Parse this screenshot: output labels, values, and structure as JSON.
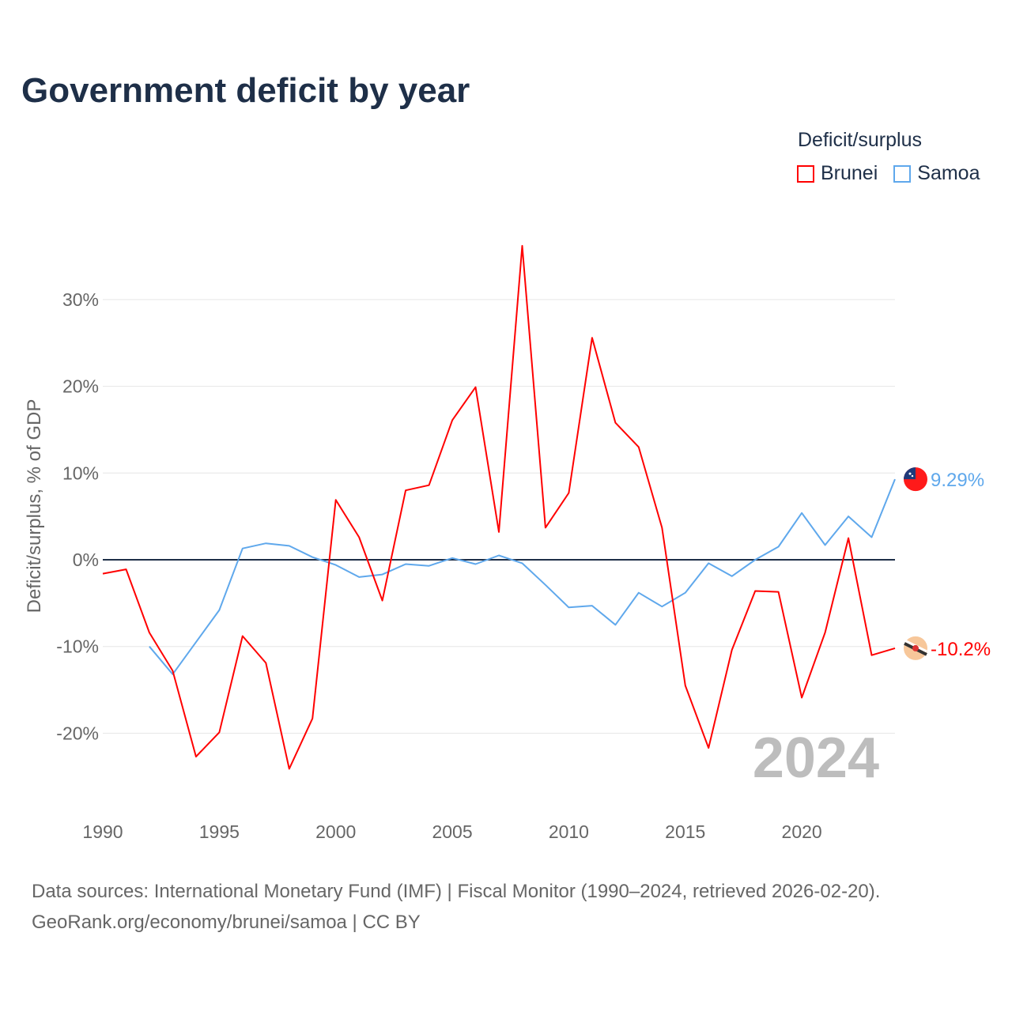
{
  "chart_data": {
    "type": "line",
    "title": "Government deficit by year",
    "xlabel": "",
    "ylabel": "Deficit/surplus, % of GDP",
    "xlim": [
      1990,
      2024
    ],
    "ylim": [
      -28,
      36
    ],
    "x_ticks": [
      1990,
      1995,
      2000,
      2005,
      2010,
      2015,
      2020
    ],
    "x_tick_labels": [
      "1990",
      "1995",
      "2000",
      "2005",
      "2010",
      "2015",
      "2020"
    ],
    "y_ticks": [
      30,
      20,
      10,
      0,
      -10,
      -20
    ],
    "y_tick_labels": [
      "30%",
      "20%",
      "10%",
      "0%",
      "-10%",
      "-20%"
    ],
    "grid": true,
    "legend_title": "Deficit/surplus",
    "legend_position": "top-right",
    "year_label": "2024",
    "series": [
      {
        "name": "Brunei",
        "color": "#ff0000",
        "end_label": "-10.2%",
        "start_year": 1990,
        "values": [
          -1.6,
          -1.1,
          -8.4,
          -12.8,
          -22.7,
          -19.9,
          -8.8,
          -11.9,
          -24.1,
          -18.3,
          6.9,
          2.6,
          -4.7,
          8.0,
          8.6,
          16.1,
          19.9,
          3.2,
          36.2,
          3.7,
          7.7,
          25.6,
          15.8,
          13.0,
          3.7,
          -14.5,
          -21.7,
          -10.4,
          -3.6,
          -3.7,
          -15.9,
          -8.4,
          2.5,
          -11.0,
          -10.2
        ]
      },
      {
        "name": "Samoa",
        "color": "#5fa8ec",
        "end_label": "9.29%",
        "start_year": 1992,
        "values": [
          -10.0,
          -13.2,
          -9.5,
          -5.8,
          1.3,
          1.9,
          1.6,
          0.3,
          -0.6,
          -2.0,
          -1.7,
          -0.5,
          -0.7,
          0.2,
          -0.5,
          0.5,
          -0.4,
          -2.9,
          -5.5,
          -5.3,
          -7.5,
          -3.8,
          -5.4,
          -3.8,
          -0.4,
          -1.9,
          0.0,
          1.5,
          5.4,
          1.7,
          5.0,
          2.6,
          9.29
        ]
      }
    ]
  },
  "footer": {
    "sources": "Data sources: International Monetary Fund (IMF) | Fiscal Monitor (1990–2024, retrieved 2026-02-20).",
    "credit": "GeoRank.org/economy/brunei/samoa | CC BY"
  }
}
